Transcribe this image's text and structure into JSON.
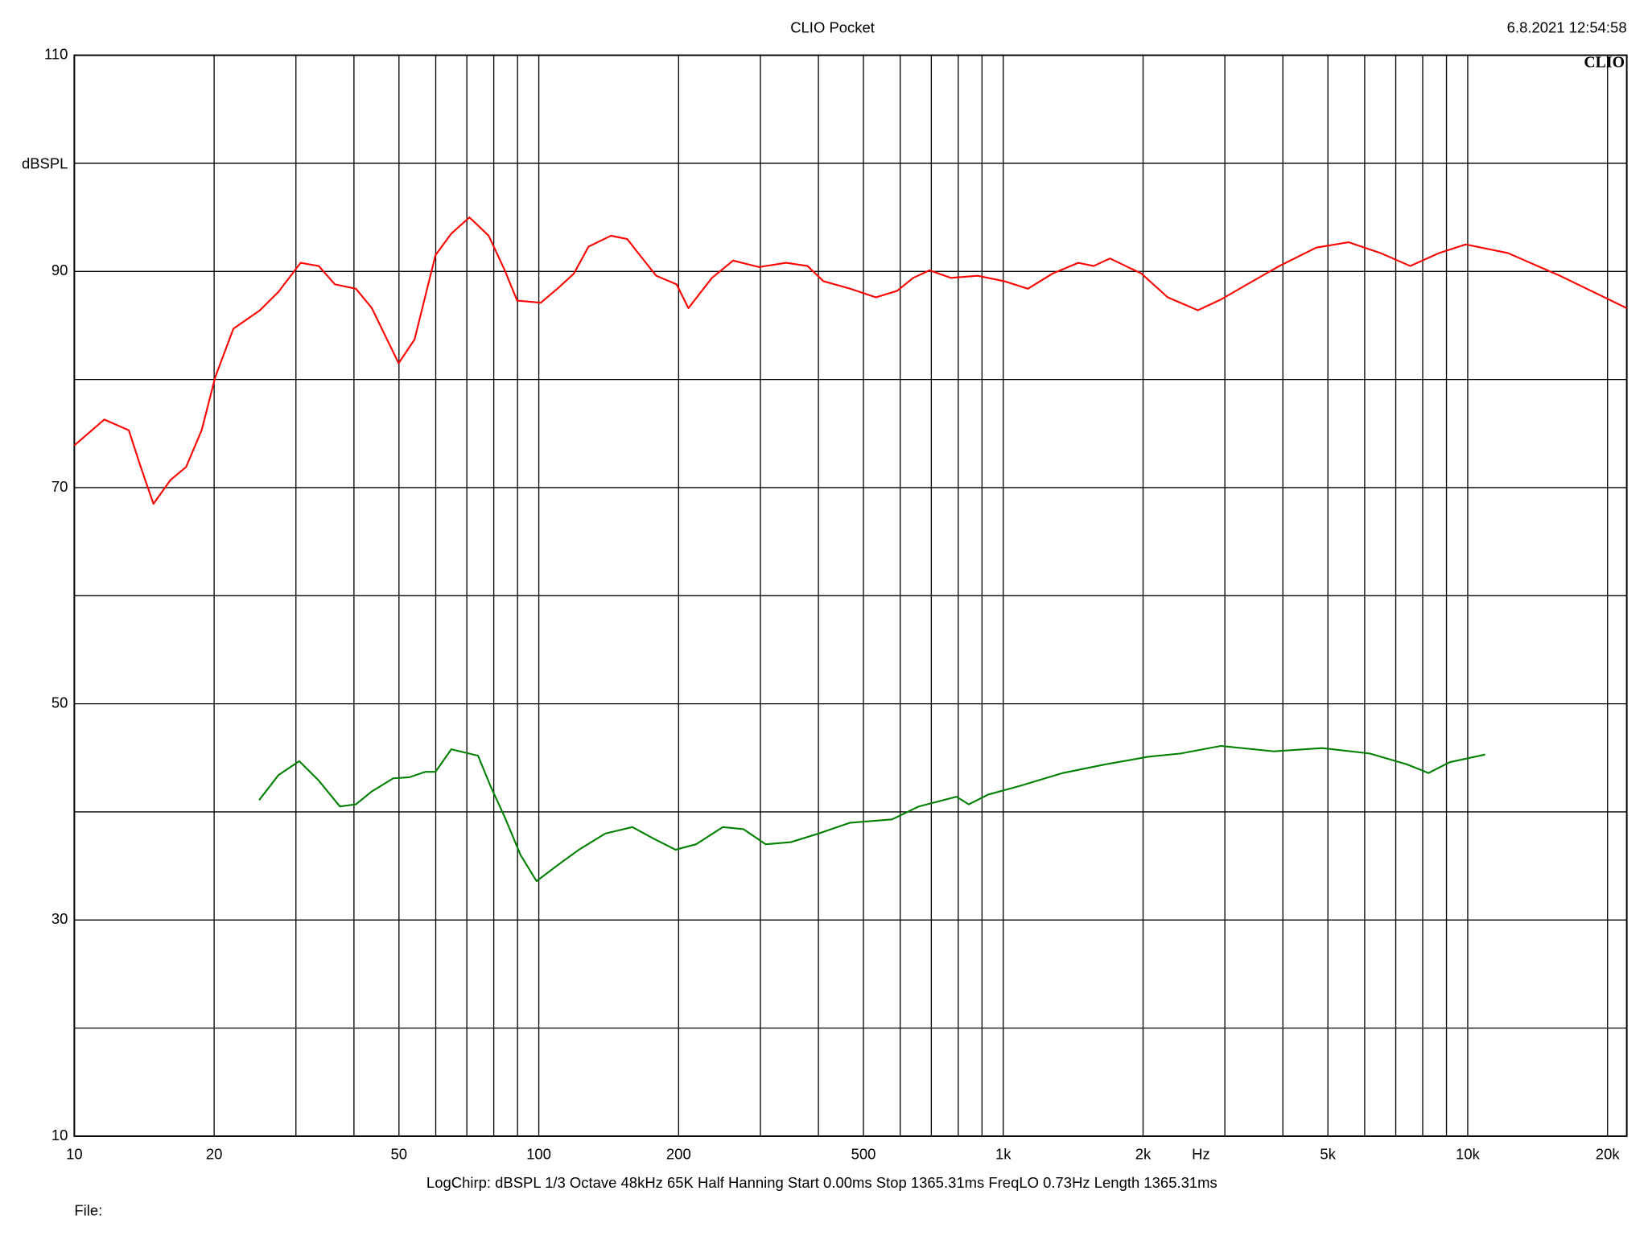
{
  "chart_data": {
    "type": "line",
    "title": "CLIO Pocket",
    "timestamp": "6.8.2021 12:54:58",
    "logo": "CLIO",
    "ylabel": "dBSPL",
    "xlabel": "Hz",
    "footer": "LogChirp:  dBSPL   1/3 Octave   48kHz   65K   Half Hanning   Start 0.00ms    Stop 1365.31ms    FreqLO 0.73Hz    Length 1365.31ms",
    "file_label": "File:",
    "xscale": "log",
    "grid": true,
    "xlim": [
      10,
      22000
    ],
    "ylim": [
      10,
      110
    ],
    "xticks": [
      10,
      20,
      50,
      100,
      200,
      500,
      {
        "value": 1000,
        "label": "1k"
      },
      {
        "value": 2000,
        "label": "2k"
      },
      {
        "value": 5000,
        "label": "5k"
      },
      {
        "value": 10000,
        "label": "10k"
      },
      {
        "value": 20000,
        "label": "20k"
      }
    ],
    "xgrid_minor": [
      30,
      40,
      60,
      70,
      80,
      90,
      300,
      400,
      600,
      700,
      800,
      900,
      3000,
      4000,
      6000,
      7000,
      8000,
      9000
    ],
    "yticks": [
      10,
      30,
      50,
      70,
      90,
      110
    ],
    "ygrid_minor": [
      20,
      40,
      60,
      80,
      100
    ],
    "series": [
      {
        "color": "#ff0000",
        "x": [
          10,
          11.6,
          13.1,
          13.9,
          14.8,
          16.1,
          17.4,
          18.8,
          20.1,
          22,
          25.1,
          27.5,
          30.7,
          33.6,
          36.4,
          40.4,
          43.7,
          49.9,
          54,
          59.9,
          64.8,
          70.9,
          78,
          84.5,
          89.8,
          101,
          111,
          119,
          128,
          143,
          155,
          163,
          179,
          198,
          210,
          236,
          262,
          298,
          341,
          379,
          410,
          468,
          532,
          591,
          640,
          694,
          772,
          881,
          1004,
          1130,
          1277,
          1450,
          1566,
          1697,
          1983,
          2260,
          2624,
          2940,
          3350,
          3930,
          4720,
          5540,
          6490,
          7520,
          8680,
          9900,
          12200,
          15800,
          22000
        ],
        "values": [
          73.9,
          76.3,
          75.3,
          71.9,
          68.5,
          70.7,
          71.9,
          75.3,
          80.2,
          84.7,
          86.4,
          88.1,
          90.8,
          90.5,
          88.8,
          88.4,
          86.6,
          81.5,
          83.7,
          91.5,
          93.5,
          95.0,
          93.3,
          90.1,
          87.3,
          87.1,
          88.6,
          89.8,
          92.3,
          93.3,
          93.0,
          91.8,
          89.6,
          88.8,
          86.6,
          89.4,
          91.0,
          90.4,
          90.8,
          90.5,
          89.1,
          88.4,
          87.6,
          88.2,
          89.4,
          90.1,
          89.4,
          89.6,
          89.1,
          88.4,
          89.8,
          90.8,
          90.5,
          91.2,
          89.8,
          87.6,
          86.4,
          87.4,
          88.8,
          90.5,
          92.2,
          92.7,
          91.7,
          90.5,
          91.7,
          92.5,
          91.7,
          89.6,
          86.6
        ]
      },
      {
        "color": "#008000",
        "x": [
          25,
          27.5,
          30.5,
          33.6,
          37.3,
          40.4,
          43.7,
          48.6,
          52.6,
          56.9,
          59.9,
          64.8,
          74,
          78.7,
          84.5,
          91.4,
          98.9,
          110,
          122,
          139,
          159,
          177,
          197,
          218,
          249,
          276,
          308,
          349,
          400,
          468,
          576,
          658,
          793,
          843,
          928,
          1085,
          1343,
          1662,
          2050,
          2410,
          2940,
          3830,
          4850,
          6150,
          7400,
          8230,
          9150,
          10900
        ],
        "values": [
          41.1,
          43.4,
          44.7,
          42.9,
          40.5,
          40.7,
          41.9,
          43.1,
          43.2,
          43.7,
          43.7,
          45.8,
          45.2,
          42.4,
          39.5,
          36.0,
          33.6,
          35.1,
          36.5,
          38.0,
          38.6,
          37.5,
          36.5,
          37.0,
          38.6,
          38.4,
          37.0,
          37.2,
          38.0,
          39.0,
          39.3,
          40.5,
          41.4,
          40.7,
          41.6,
          42.4,
          43.6,
          44.4,
          45.1,
          45.4,
          46.1,
          45.6,
          45.9,
          45.4,
          44.4,
          43.6,
          44.6,
          45.3
        ]
      }
    ]
  }
}
